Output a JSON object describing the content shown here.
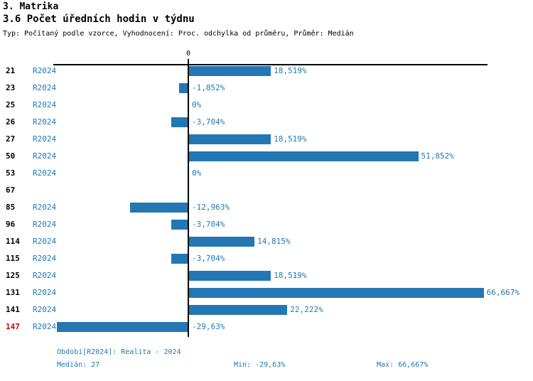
{
  "header": {
    "title": "3. Matrika",
    "subtitle": "3.6 Počet úředních hodin v týdnu",
    "meta": "Typ: Počítaný podle vzorce, Vyhodnocení: Proc. odchylka od průměru, Průměr: Medián"
  },
  "chart_data": {
    "type": "bar",
    "orientation": "horizontal",
    "title": "3.6 Počet úředních hodin v týdnu",
    "zero_tick_label": "0",
    "series_label": "R2024",
    "xlim": [
      -30.5,
      67.5
    ],
    "grid": false,
    "bar_color": "#2377B4",
    "text_color": "#1F77B4",
    "highlight_color": "#D40000",
    "rows": [
      {
        "id": "21",
        "period": "R2024",
        "value": 18.519,
        "label": "18,519%",
        "highlight": false
      },
      {
        "id": "23",
        "period": "R2024",
        "value": -1.852,
        "label": "-1,852%",
        "highlight": false
      },
      {
        "id": "25",
        "period": "R2024",
        "value": 0,
        "label": "0%",
        "highlight": false
      },
      {
        "id": "26",
        "period": "R2024",
        "value": -3.704,
        "label": "-3,704%",
        "highlight": false
      },
      {
        "id": "27",
        "period": "R2024",
        "value": 18.519,
        "label": "18,519%",
        "highlight": false
      },
      {
        "id": "50",
        "period": "R2024",
        "value": 51.852,
        "label": "51,852%",
        "highlight": false
      },
      {
        "id": "53",
        "period": "R2024",
        "value": 0,
        "label": "0%",
        "highlight": false
      },
      {
        "id": "67",
        "period": null,
        "value": null,
        "label": "",
        "highlight": false
      },
      {
        "id": "85",
        "period": "R2024",
        "value": -12.963,
        "label": "-12,963%",
        "highlight": false
      },
      {
        "id": "96",
        "period": "R2024",
        "value": -3.704,
        "label": "-3,704%",
        "highlight": false
      },
      {
        "id": "114",
        "period": "R2024",
        "value": 14.815,
        "label": "14,815%",
        "highlight": false
      },
      {
        "id": "115",
        "period": "R2024",
        "value": -3.704,
        "label": "-3,704%",
        "highlight": false
      },
      {
        "id": "125",
        "period": "R2024",
        "value": 18.519,
        "label": "18,519%",
        "highlight": false
      },
      {
        "id": "131",
        "period": "R2024",
        "value": 66.667,
        "label": "66,667%",
        "highlight": false
      },
      {
        "id": "141",
        "period": "R2024",
        "value": 22.222,
        "label": "22,222%",
        "highlight": false
      },
      {
        "id": "147",
        "period": "R2024",
        "value": -29.63,
        "label": "-29,63%",
        "highlight": true
      }
    ]
  },
  "footer": {
    "period_line": "Období[R2024]: Realita - 2024",
    "median_label": "Medián: 27",
    "min_label": "Min: -29,63%",
    "max_label": "Max: 66,667%"
  }
}
